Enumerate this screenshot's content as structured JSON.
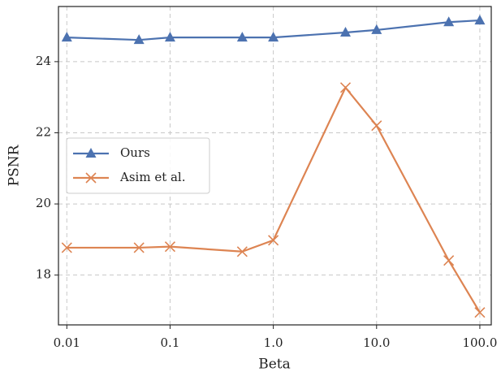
{
  "chart_data": {
    "type": "line",
    "xlabel": "Beta",
    "ylabel": "PSNR",
    "x": [
      0.01,
      0.05,
      0.1,
      0.5,
      1,
      5,
      10,
      50,
      100
    ],
    "series": [
      {
        "name": "Ours",
        "color": "#4c72b0",
        "marker": "triangle",
        "values": [
          24.68,
          24.61,
          24.68,
          24.68,
          24.68,
          24.82,
          24.89,
          25.11,
          25.16
        ]
      },
      {
        "name": "Asim et al.",
        "color": "#dd8452",
        "marker": "x",
        "values": [
          18.77,
          18.77,
          18.8,
          18.66,
          18.98,
          23.27,
          22.2,
          18.41,
          16.95
        ]
      }
    ],
    "xscale": "log",
    "xlim": [
      0.0083,
      129
    ],
    "xticks": [
      0.01,
      0.1,
      {
        "value": 1,
        "label": "1.0"
      },
      {
        "value": 10,
        "label": "10.0"
      },
      {
        "value": 100,
        "label": "100.0"
      }
    ],
    "ylim": [
      16.6,
      25.55
    ],
    "yticks": [
      18,
      20,
      22,
      24
    ],
    "grid": true,
    "legend": "center left"
  }
}
